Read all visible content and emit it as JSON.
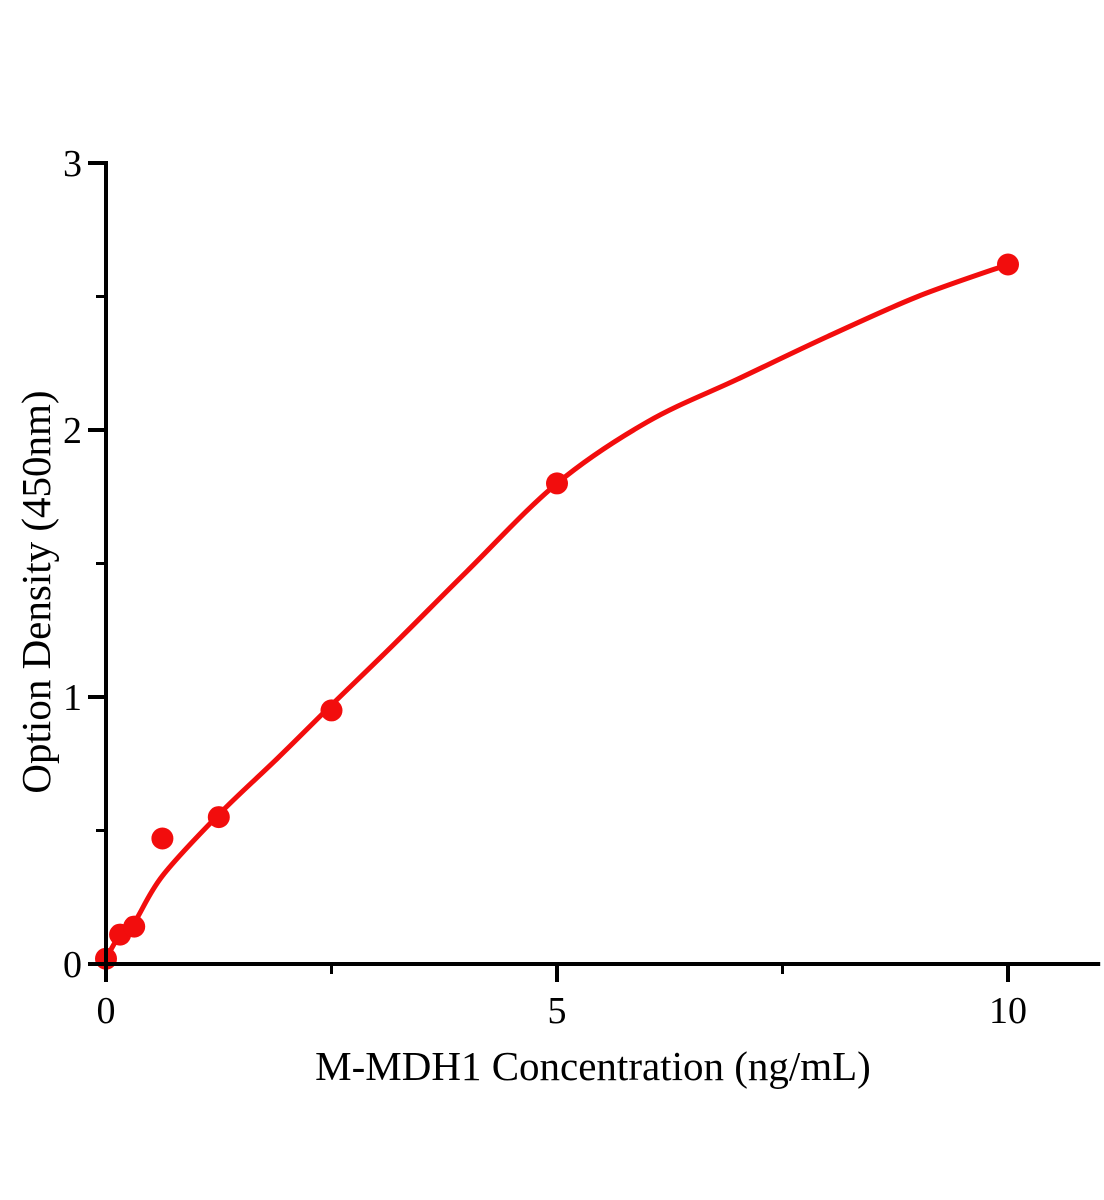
{
  "page": {
    "background_color": "#ffffff",
    "description": "ELISA standard curve plot"
  },
  "chart_data": {
    "type": "scatter",
    "title": "",
    "xlabel": "M-MDH1 Concentration（ng/mL）",
    "ylabel": "Option Density（450nm）",
    "xlim": [
      0,
      11.0
    ],
    "ylim": [
      0,
      3
    ],
    "grid": false,
    "legend_visible": false,
    "background_color": "#ffffff",
    "axis_color": "#000000",
    "accent_color": "#f20d0d",
    "x_major_ticks": [
      0,
      5,
      10
    ],
    "x_major_tick_labels": [
      "0",
      "5",
      "10"
    ],
    "x_minor_ticks": [
      2.5,
      7.5
    ],
    "y_major_ticks": [
      0,
      1,
      2,
      3
    ],
    "y_major_tick_labels": [
      "0",
      "1",
      "2",
      "3"
    ],
    "y_minor_ticks": [
      0.5,
      1.5,
      2.5
    ],
    "series": [
      {
        "name": "standard-points",
        "type": "scatter",
        "marker": "circle",
        "color": "#f20d0d",
        "x": [
          0,
          0.156,
          0.3125,
          0.625,
          1.25,
          2.5,
          5,
          10
        ],
        "y": [
          0.02,
          0.11,
          0.14,
          0.47,
          0.55,
          0.95,
          1.8,
          2.62
        ]
      },
      {
        "name": "fit-curve",
        "type": "line",
        "color": "#f20d0d",
        "x": [
          0,
          0.156,
          0.3125,
          0.625,
          1.25,
          1.9,
          2.5,
          3.2,
          4.0,
          5.0,
          6.0,
          7.0,
          8.0,
          9.0,
          10.0
        ],
        "y": [
          0.02,
          0.11,
          0.155,
          0.33,
          0.56,
          0.77,
          0.97,
          1.2,
          1.47,
          1.8,
          2.03,
          2.19,
          2.35,
          2.5,
          2.62
        ]
      }
    ]
  }
}
